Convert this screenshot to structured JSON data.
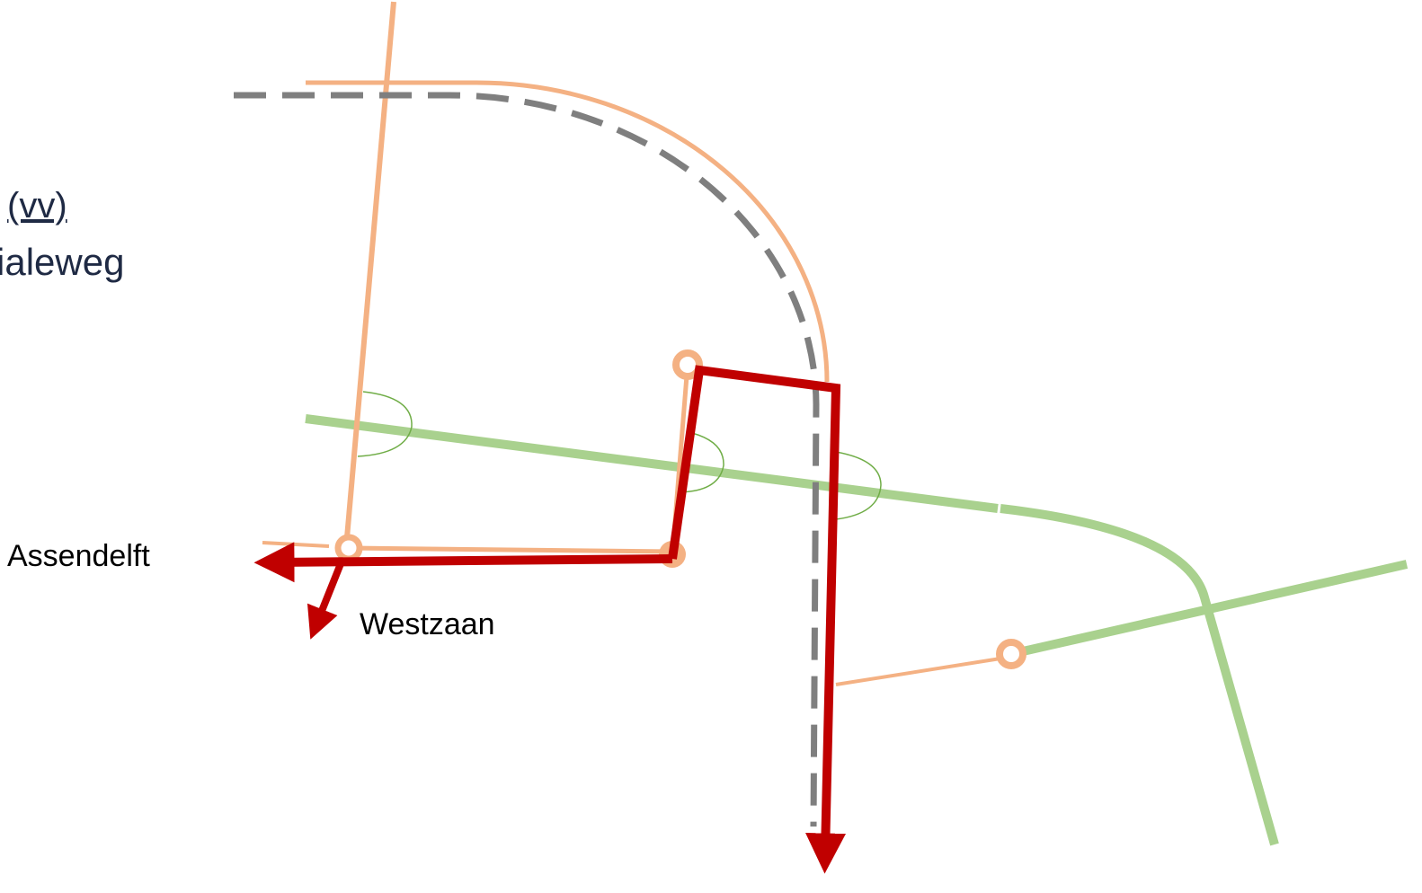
{
  "labels": {
    "top_label": "(vv)",
    "road_label": "ialeweg",
    "assendelft": "Assendelft",
    "westzaan": "Westzaan"
  }
}
